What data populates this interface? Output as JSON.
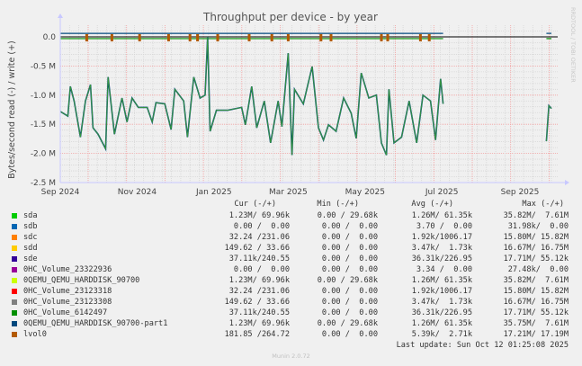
{
  "chart_data": {
    "type": "line",
    "title": "Throughput per device - by year",
    "ylabel": "Bytes/second read (-) / write (+)",
    "side_label": "RRDTOOL / TOBI OETIKER",
    "ylim": [
      -2.5,
      0.2
    ],
    "y_unit": "M",
    "y_ticks": [
      {
        "v": 0,
        "label": "0.0"
      },
      {
        "v": -0.5,
        "label": "-0.5 M"
      },
      {
        "v": -1.0,
        "label": "-1.0 M"
      },
      {
        "v": -1.5,
        "label": "-1.5 M"
      },
      {
        "v": -2.0,
        "label": "-2.0 M"
      },
      {
        "v": -2.5,
        "label": "-2.5 M"
      }
    ],
    "xlim": [
      "2024-09-01",
      "2025-10-01"
    ],
    "x_ticks": [
      {
        "d": "2024-09-01",
        "label": "Sep 2024"
      },
      {
        "d": "2024-11-01",
        "label": "Nov 2024"
      },
      {
        "d": "2025-01-01",
        "label": "Jan 2025"
      },
      {
        "d": "2025-03-01",
        "label": "Mar 2025"
      },
      {
        "d": "2025-05-01",
        "label": "May 2025"
      },
      {
        "d": "2025-07-01",
        "label": "Jul 2025"
      },
      {
        "d": "2025-09-01",
        "label": "Sep 2025"
      }
    ],
    "grid": true,
    "read_series": {
      "segments": [
        [
          [
            "2024-09-01",
            -1.28
          ],
          [
            "2024-09-07",
            -1.36
          ],
          [
            "2024-09-09",
            -0.85
          ],
          [
            "2024-09-12",
            -1.1
          ],
          [
            "2024-09-17",
            -1.72
          ],
          [
            "2024-09-21",
            -1.1
          ],
          [
            "2024-09-25",
            -0.82
          ],
          [
            "2024-09-27",
            -1.56
          ],
          [
            "2024-10-01",
            -1.67
          ],
          [
            "2024-10-07",
            -1.92
          ],
          [
            "2024-10-09",
            -0.69
          ],
          [
            "2024-10-14",
            -1.67
          ],
          [
            "2024-10-20",
            -1.05
          ],
          [
            "2024-10-24",
            -1.46
          ],
          [
            "2024-10-28",
            -1.05
          ],
          [
            "2024-11-02",
            -1.21
          ],
          [
            "2024-11-09",
            -1.21
          ],
          [
            "2024-11-13",
            -1.46
          ],
          [
            "2024-11-16",
            -1.13
          ],
          [
            "2024-11-23",
            -1.15
          ],
          [
            "2024-11-28",
            -1.59
          ],
          [
            "2024-12-01",
            -0.9
          ],
          [
            "2024-12-08",
            -1.1
          ],
          [
            "2024-12-11",
            -1.72
          ],
          [
            "2024-12-16",
            -0.69
          ],
          [
            "2024-12-21",
            -1.05
          ],
          [
            "2024-12-25",
            -1.0
          ],
          [
            "2024-12-27",
            0.0
          ],
          [
            "2024-12-29",
            -1.62
          ],
          [
            "2025-01-03",
            -1.26
          ],
          [
            "2025-01-12",
            -1.26
          ],
          [
            "2025-01-23",
            -1.21
          ],
          [
            "2025-01-26",
            -1.51
          ],
          [
            "2025-01-31",
            -0.85
          ],
          [
            "2025-02-04",
            -1.56
          ],
          [
            "2025-02-10",
            -1.1
          ],
          [
            "2025-02-15",
            -1.82
          ],
          [
            "2025-02-21",
            -1.1
          ],
          [
            "2025-02-24",
            -1.54
          ],
          [
            "2025-03-01",
            -0.28
          ],
          [
            "2025-03-04",
            -2.03
          ],
          [
            "2025-03-06",
            -0.9
          ],
          [
            "2025-03-13",
            -1.15
          ],
          [
            "2025-03-20",
            -0.51
          ],
          [
            "2025-03-25",
            -1.56
          ],
          [
            "2025-03-29",
            -1.77
          ],
          [
            "2025-04-02",
            -1.51
          ],
          [
            "2025-04-08",
            -1.62
          ],
          [
            "2025-04-14",
            -1.05
          ],
          [
            "2025-04-20",
            -1.31
          ],
          [
            "2025-04-24",
            -1.74
          ],
          [
            "2025-04-28",
            -0.62
          ],
          [
            "2025-05-04",
            -1.05
          ],
          [
            "2025-05-10",
            -1.0
          ],
          [
            "2025-05-14",
            -1.82
          ],
          [
            "2025-05-18",
            -2.03
          ],
          [
            "2025-05-20",
            -0.9
          ],
          [
            "2025-05-24",
            -1.82
          ],
          [
            "2025-05-30",
            -1.72
          ],
          [
            "2025-06-05",
            -1.1
          ],
          [
            "2025-06-11",
            -1.82
          ],
          [
            "2025-06-16",
            -1.0
          ],
          [
            "2025-06-22",
            -1.1
          ],
          [
            "2025-06-26",
            -1.77
          ],
          [
            "2025-06-30",
            -0.72
          ],
          [
            "2025-07-02",
            -1.15
          ]
        ],
        [
          [
            "2025-09-22",
            -1.79
          ],
          [
            "2025-09-24",
            -1.18
          ],
          [
            "2025-09-26",
            -1.23
          ]
        ]
      ]
    },
    "write_level": 0.06,
    "small_read_level": -0.03,
    "spike_dates": [
      "2024-09-22",
      "2024-10-12",
      "2024-11-03",
      "2024-11-26",
      "2024-12-13",
      "2024-12-19",
      "2025-01-04",
      "2025-01-29",
      "2025-02-16",
      "2025-03-01",
      "2025-03-27",
      "2025-04-04",
      "2025-05-14",
      "2025-05-19",
      "2025-06-14",
      "2025-06-21"
    ]
  },
  "legend": {
    "headers": {
      "cur": "Cur (-/+)",
      "min": "Min (-/+)",
      "avg": "Avg (-/+)",
      "max": "Max (-/+)"
    },
    "rows": [
      {
        "name": "sda",
        "color": "#00cc00",
        "cur": "1.23M/ 69.96k",
        "min": "0.00 / 29.68k",
        "avg": "1.26M/ 61.35k",
        "max": "35.82M/  7.61M"
      },
      {
        "name": "sdb",
        "color": "#0066b3",
        "cur": "0.00 /  0.00",
        "min": "0.00 /  0.00",
        "avg": "3.70 /  0.00",
        "max": "31.98k/  0.00"
      },
      {
        "name": "sdc",
        "color": "#ff8000",
        "cur": "32.24 /231.06",
        "min": "0.00 /  0.00",
        "avg": "1.92k/1006.17",
        "max": "15.80M/ 15.82M"
      },
      {
        "name": "sdd",
        "color": "#ffcc00",
        "cur": "149.62 / 33.66",
        "min": "0.00 /  0.00",
        "avg": "3.47k/  1.73k",
        "max": "16.67M/ 16.75M"
      },
      {
        "name": "sde",
        "color": "#330099",
        "cur": "37.11k/240.55",
        "min": "0.00 /  0.00",
        "avg": "36.31k/226.95",
        "max": "17.71M/ 55.12k"
      },
      {
        "name": "0HC_Volume_23322936",
        "color": "#990099",
        "cur": "0.00 /  0.00",
        "min": "0.00 /  0.00",
        "avg": "3.34 /  0.00",
        "max": "27.48k/  0.00"
      },
      {
        "name": "0QEMU_QEMU_HARDDISK_90700",
        "color": "#ccff00",
        "cur": "1.23M/ 69.96k",
        "min": "0.00 / 29.68k",
        "avg": "1.26M/ 61.35k",
        "max": "35.82M/  7.61M"
      },
      {
        "name": "0HC_Volume_23123318",
        "color": "#ff0000",
        "cur": "32.24 /231.06",
        "min": "0.00 /  0.00",
        "avg": "1.92k/1006.17",
        "max": "15.80M/ 15.82M"
      },
      {
        "name": "0HC_Volume_23123308",
        "color": "#808080",
        "cur": "149.62 / 33.66",
        "min": "0.00 /  0.00",
        "avg": "3.47k/  1.73k",
        "max": "16.67M/ 16.75M"
      },
      {
        "name": "0HC_Volume_6142497",
        "color": "#008f00",
        "cur": "37.11k/240.55",
        "min": "0.00 /  0.00",
        "avg": "36.31k/226.95",
        "max": "17.71M/ 55.12k"
      },
      {
        "name": "0QEMU_QEMU_HARDDISK_90700-part1",
        "color": "#00487d",
        "cur": "1.23M/ 69.96k",
        "min": "0.00 / 29.68k",
        "avg": "1.26M/ 61.35k",
        "max": "35.75M/  7.61M"
      },
      {
        "name": "lvol0",
        "color": "#b35a00",
        "cur": "181.85 /264.72",
        "min": "0.00 /  0.00",
        "avg": "5.39k/  2.71k",
        "max": "17.21M/ 17.19M"
      }
    ],
    "last_update": "Last update: Sun Oct 12 01:25:08 2025"
  },
  "footer": "Munin 2.0.72"
}
